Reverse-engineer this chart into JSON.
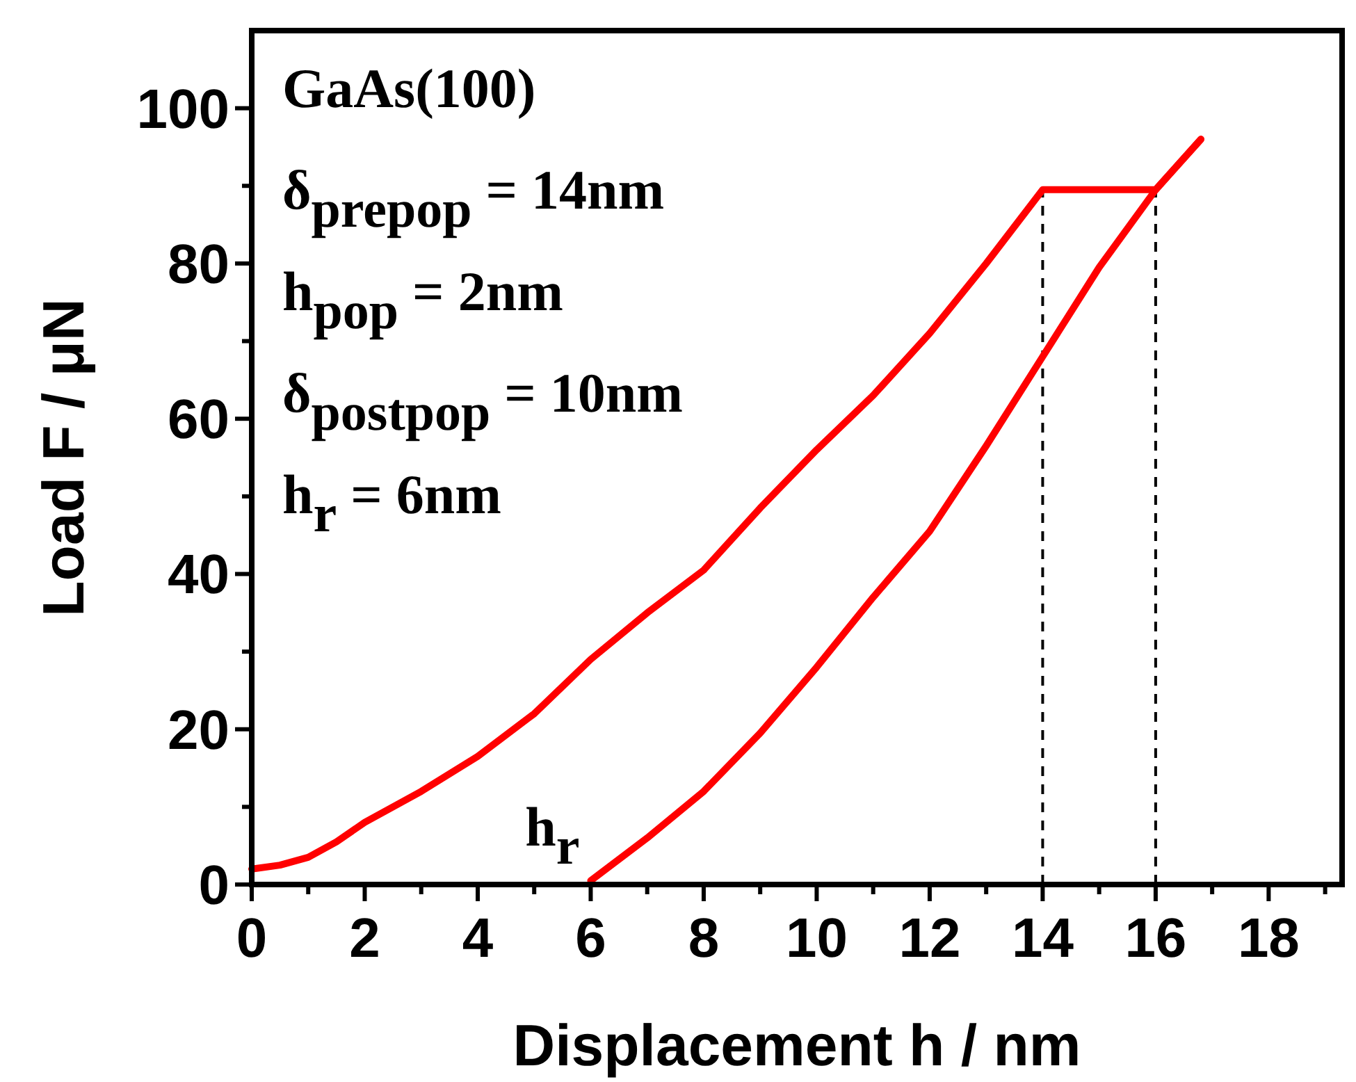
{
  "chart_data": {
    "type": "line",
    "xlabel": "Displacement  h / nm",
    "ylabel": "Load  F / μN",
    "xlim": [
      0,
      19.3
    ],
    "ylim": [
      0,
      110
    ],
    "xticks": [
      0,
      {
        "value": 1,
        "label": null
      },
      2,
      {
        "value": 3,
        "label": null
      },
      4,
      {
        "value": 5,
        "label": null
      },
      6,
      {
        "value": 7,
        "label": null
      },
      8,
      {
        "value": 9,
        "label": null
      },
      10,
      {
        "value": 11,
        "label": null
      },
      12,
      {
        "value": 13,
        "label": null
      },
      14,
      {
        "value": 15,
        "label": null
      },
      16,
      {
        "value": 17,
        "label": null
      },
      18,
      {
        "value": 19,
        "label": null
      }
    ],
    "yticks": [
      0,
      {
        "value": 10,
        "label": null
      },
      20,
      {
        "value": 30,
        "label": null
      },
      40,
      {
        "value": 50,
        "label": null
      },
      60,
      {
        "value": 70,
        "label": null
      },
      80,
      {
        "value": 90,
        "label": null
      },
      100
    ],
    "marker": "none",
    "line_style": "solid",
    "series": [
      {
        "color": "#ff0000",
        "x": [
          0,
          0.5,
          1,
          1.5,
          2,
          3,
          4,
          5,
          6,
          7,
          8,
          9,
          10,
          11,
          12,
          13,
          14,
          16,
          16.8
        ],
        "values": [
          2,
          2.5,
          3.5,
          5.5,
          8,
          12,
          16.5,
          22,
          29,
          35,
          40.5,
          48.5,
          56,
          63,
          71,
          80,
          89.5,
          89.5,
          96
        ]
      },
      {
        "color": "#ff0000",
        "x": [
          16.8,
          16,
          15,
          14,
          13,
          12,
          11,
          10,
          9,
          8,
          7,
          6
        ],
        "values": [
          96,
          89.5,
          79.5,
          68,
          56.5,
          45.5,
          37,
          28,
          19.5,
          12,
          6,
          0.5
        ]
      }
    ],
    "ref_lines": [
      {
        "axis": "x",
        "value": 14,
        "line_style": "dashed",
        "color": "#000000"
      },
      {
        "axis": "x",
        "value": 16,
        "line_style": "dashed",
        "color": "#000000"
      }
    ],
    "annotations": [
      "GaAs(100)",
      "δ$_{prepop}$ = 14nm",
      "h$_{pop}$ = 2nm",
      "δ$_{postpop}$ = 10nm",
      "h$_{r}$ = 6nm",
      {
        "text": "h$_{r}$",
        "x": 6,
        "y": 0
      }
    ]
  }
}
